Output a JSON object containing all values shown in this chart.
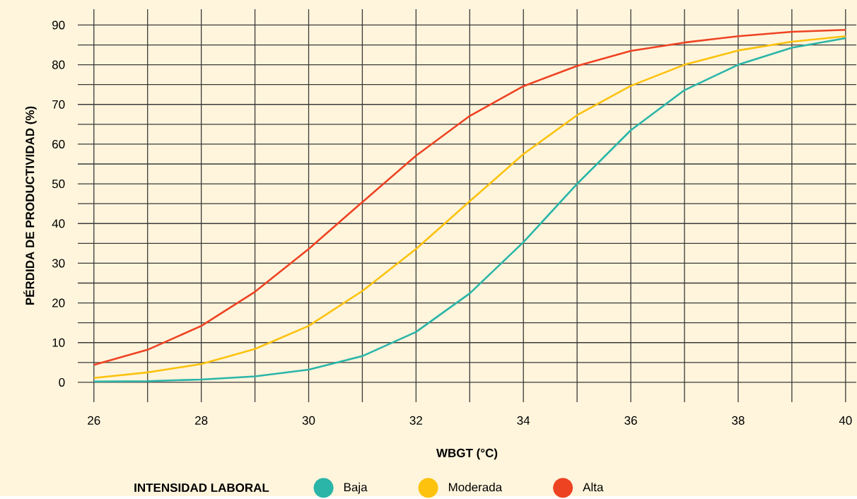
{
  "chart_data": {
    "type": "line",
    "xlabel": "WBGT (°C)",
    "ylabel": "PÉRDIDA DE PRODUCTIVIDAD (%)",
    "legend_title": "INTENSIDAD LABORAL",
    "x": [
      26,
      27,
      28,
      29,
      30,
      31,
      32,
      33,
      34,
      35,
      36,
      37,
      38,
      39,
      40
    ],
    "series": [
      {
        "name": "Baja",
        "color": "#2ab5a8",
        "values": [
          0.2,
          0.3,
          0.7,
          1.5,
          3.2,
          6.6,
          12.7,
          22.4,
          35.3,
          50,
          63.5,
          73.6,
          80,
          84.3,
          86.7
        ]
      },
      {
        "name": "Moderada",
        "color": "#fcc20e",
        "values": [
          1.1,
          2.5,
          4.6,
          8.4,
          14.2,
          23,
          33.6,
          45.6,
          57.5,
          67.3,
          74.7,
          80,
          83.6,
          85.8,
          87.2
        ]
      },
      {
        "name": "Alta",
        "color": "#ee4323",
        "values": [
          4.4,
          8.2,
          14.2,
          22.8,
          33.6,
          45.4,
          57.1,
          67.1,
          74.6,
          79.7,
          83.5,
          85.6,
          87.2,
          88.3,
          88.8
        ]
      }
    ],
    "xlim": [
      25.7,
      40.2
    ],
    "ylim": [
      -5,
      94
    ],
    "xticks": [
      26,
      {
        "value": 27,
        "label": null
      },
      28,
      {
        "value": 29,
        "label": null
      },
      30,
      {
        "value": 31,
        "label": null
      },
      32,
      {
        "value": 33,
        "label": null
      },
      34,
      {
        "value": 35,
        "label": null
      },
      36,
      {
        "value": 37,
        "label": null
      },
      38,
      {
        "value": 39,
        "label": null
      },
      40
    ],
    "yticks": [
      0,
      {
        "value": 5,
        "label": null
      },
      10,
      {
        "value": 15,
        "label": null
      },
      20,
      {
        "value": 25,
        "label": null
      },
      30,
      {
        "value": 35,
        "label": null
      },
      40,
      {
        "value": 45,
        "label": null
      },
      50,
      {
        "value": 55,
        "label": null
      },
      60,
      {
        "value": 65,
        "label": null
      },
      70,
      {
        "value": 75,
        "label": null
      },
      80,
      {
        "value": 85,
        "label": null
      },
      90
    ],
    "grid": true,
    "legend": "bottom",
    "marker": "none",
    "line_style": "solid"
  }
}
